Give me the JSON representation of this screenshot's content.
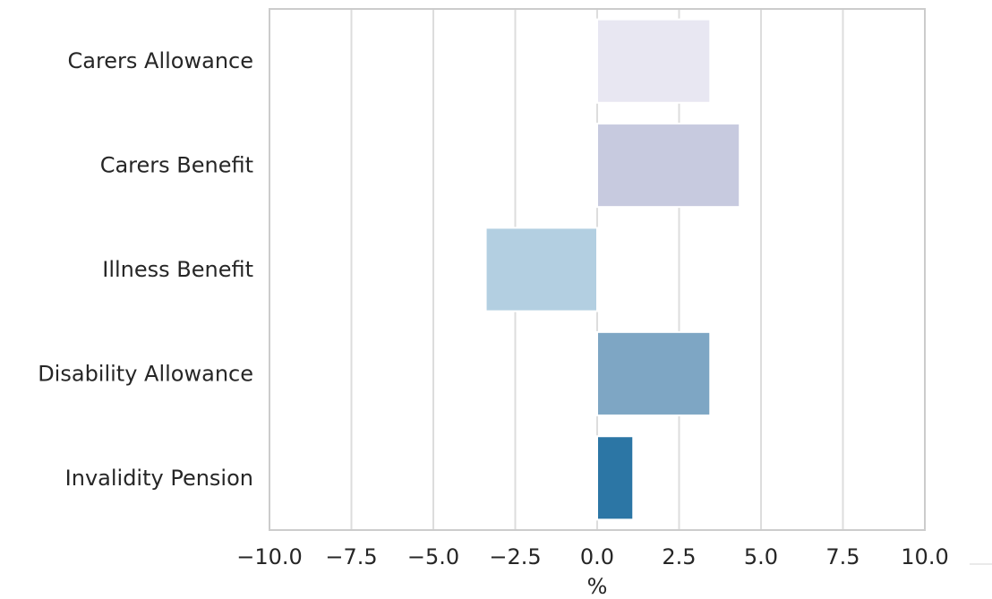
{
  "chart_data": {
    "type": "bar",
    "orientation": "horizontal",
    "categories": [
      "Carers Allowance",
      "Carers Benefit",
      "Illness Benefit",
      "Disability Allowance",
      "Invalidity Pension"
    ],
    "values": [
      3.45,
      4.35,
      -3.4,
      3.45,
      1.1
    ],
    "colors": [
      "#e8e7f2",
      "#c7cadf",
      "#b3cfe1",
      "#7ea6c4",
      "#2c76a5"
    ],
    "title": "",
    "xlabel": "%",
    "ylabel": "",
    "xlim": [
      -10,
      10
    ],
    "xticks": [
      -10,
      -7.5,
      -5,
      -2.5,
      0,
      2.5,
      5,
      7.5,
      10
    ],
    "xtick_labels": [
      "−10.0",
      "−7.5",
      "−5.0",
      "−2.5",
      "0.0",
      "2.5",
      "5.0",
      "7.5",
      "10.0"
    ],
    "grid": "vertical",
    "grid_color": "#dddddd",
    "axes_color": "#cccccc",
    "background": "#ffffff"
  }
}
